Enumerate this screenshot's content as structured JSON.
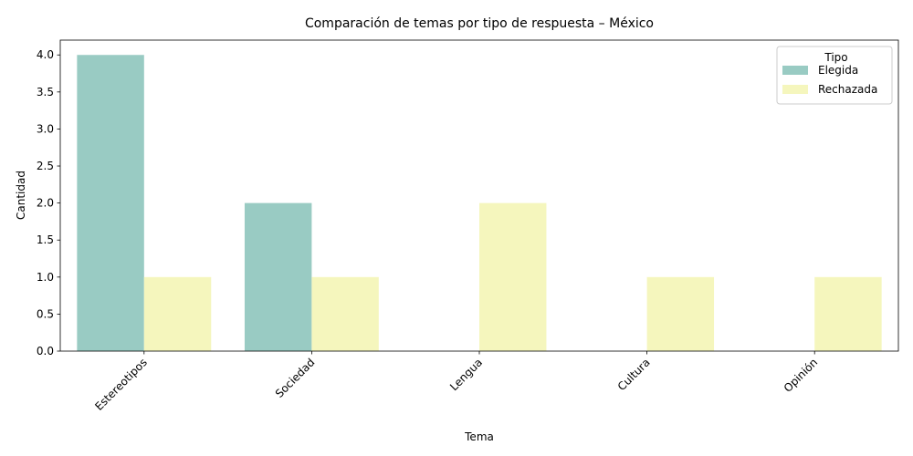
{
  "chart_data": {
    "type": "bar",
    "title": "Comparación de temas por tipo de respuesta – México",
    "xlabel": "Tema",
    "ylabel": "Cantidad",
    "categories": [
      "Estereotipos",
      "Sociedad",
      "Lengua",
      "Cultura",
      "Opinión"
    ],
    "series": [
      {
        "name": "Elegida",
        "values": [
          4,
          2,
          0,
          0,
          0
        ],
        "color": "#99cbc3"
      },
      {
        "name": "Rechazada",
        "values": [
          1,
          1,
          2,
          1,
          1
        ],
        "color": "#f5f6bd"
      }
    ],
    "ylim": [
      0,
      4.2
    ],
    "yticks": [
      "0.0",
      "0.5",
      "1.0",
      "1.5",
      "2.0",
      "2.5",
      "3.0",
      "3.5",
      "4.0"
    ],
    "grid": false,
    "legend": {
      "title": "Tipo",
      "placement": "top-right"
    }
  }
}
